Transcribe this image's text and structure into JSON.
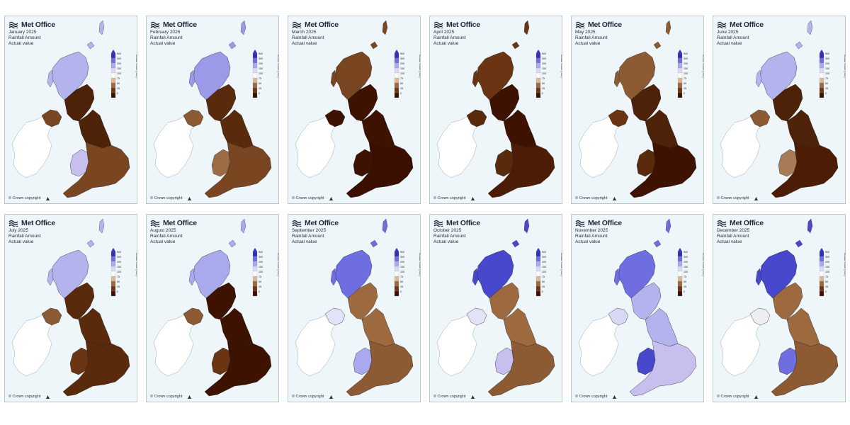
{
  "brand": "Met Office",
  "subtitle_line2": "Rainfall Amount",
  "subtitle_line3": "Actual value",
  "copyright": "© Crown copyright",
  "legend": {
    "axis_title": "Actual Value (mm)",
    "ticks": [
      "500",
      "300",
      "200",
      "150",
      "100",
      "75",
      "50",
      "25",
      "0"
    ],
    "colors": [
      "#2f2fb8",
      "#6e6ee0",
      "#a9a9ee",
      "#d8d8f6",
      "#fbfbfb",
      "#d8b899",
      "#9c6a3e",
      "#6b3514",
      "#3a0f00"
    ]
  },
  "panels": [
    {
      "month": "January 2025",
      "map_icon": "uk-rainfall-map",
      "north": "#4d2208",
      "ni": "#7a4521",
      "wales": "#c7c0ef",
      "south": "#7a4521",
      "highlands": "#b3b3ee"
    },
    {
      "month": "February 2025",
      "map_icon": "uk-rainfall-map",
      "north": "#5a2a0c",
      "ni": "#8c5a33",
      "wales": "#9b6c45",
      "south": "#7a4521",
      "highlands": "#9a9ae8"
    },
    {
      "month": "March 2025",
      "map_icon": "uk-rainfall-map",
      "north": "#3d1200",
      "ni": "#3d1200",
      "wales": "#3d1200",
      "south": "#3a0f00",
      "highlands": "#7a4521"
    },
    {
      "month": "April 2025",
      "map_icon": "uk-rainfall-map",
      "north": "#3d1200",
      "ni": "#5a2a0c",
      "wales": "#5a2a0c",
      "south": "#4d1c05",
      "highlands": "#6b3514"
    },
    {
      "month": "May 2025",
      "map_icon": "uk-rainfall-map",
      "north": "#4d2208",
      "ni": "#6b3514",
      "wales": "#5a2a0c",
      "south": "#3d1200",
      "highlands": "#8c5a33"
    },
    {
      "month": "June 2025",
      "map_icon": "uk-rainfall-map",
      "north": "#4d2208",
      "ni": "#8c5a33",
      "wales": "#a67b55",
      "south": "#4d1c05",
      "highlands": "#b3b3ee"
    },
    {
      "month": "July 2025",
      "map_icon": "uk-rainfall-map",
      "north": "#5a2a0c",
      "ni": "#8c5a33",
      "wales": "#6b3514",
      "south": "#5a2a0c",
      "highlands": "#b3b3ee"
    },
    {
      "month": "August 2025",
      "map_icon": "uk-rainfall-map",
      "north": "#3d1200",
      "ni": "#8c5a33",
      "wales": "#6b3514",
      "south": "#3d1200",
      "highlands": "#a9a9ee"
    },
    {
      "month": "September 2025",
      "map_icon": "uk-rainfall-map",
      "north": "#9c6a3e",
      "ni": "#e2e2f8",
      "wales": "#a9a9ee",
      "south": "#8c5a33",
      "highlands": "#6e6ee0"
    },
    {
      "month": "October 2025",
      "map_icon": "uk-rainfall-map",
      "north": "#9c6a3e",
      "ni": "#e2e2f8",
      "wales": "#c7c0ef",
      "south": "#8c5a33",
      "highlands": "#4848cc"
    },
    {
      "month": "November 2025",
      "map_icon": "uk-rainfall-map",
      "north": "#b3b3ee",
      "ni": "#d8d8f6",
      "wales": "#4848cc",
      "south": "#c7c0ef",
      "highlands": "#6e6ee0"
    },
    {
      "month": "December 2025",
      "map_icon": "uk-rainfall-map",
      "north": "#9c6a3e",
      "ni": "#eeeeee",
      "wales": "#6e6ee0",
      "south": "#8c5a33",
      "highlands": "#4848cc"
    }
  ]
}
